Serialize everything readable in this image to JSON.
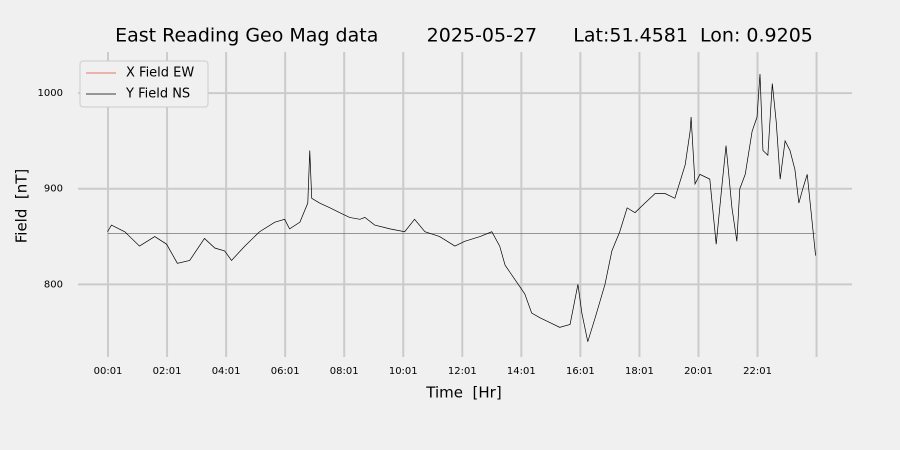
{
  "chart_data": {
    "type": "line",
    "title": "East Reading Geo Mag data        2025-05-27      Lat:51.4581  Lon: 0.9205",
    "xlabel": "Time  [Hr]",
    "ylabel": "Field  [nT]",
    "x": [
      0,
      8,
      35,
      65,
      96,
      120,
      142,
      167,
      197,
      218,
      238,
      252,
      279,
      309,
      340,
      360,
      370,
      391,
      407,
      411,
      415,
      431,
      452,
      472,
      492,
      513,
      523,
      543,
      574,
      604,
      624,
      645,
      675,
      706,
      726,
      757,
      781,
      797,
      808,
      828,
      848,
      862,
      879,
      899,
      919,
      940,
      956,
      964,
      976,
      991,
      1011,
      1025,
      1041,
      1056,
      1072,
      1092,
      1113,
      1133,
      1153,
      1174,
      1184,
      1186,
      1194,
      1204,
      1224,
      1237,
      1249,
      1257,
      1269,
      1279,
      1285,
      1296,
      1310,
      1320,
      1326,
      1332,
      1342,
      1351,
      1359,
      1367,
      1377,
      1387,
      1397,
      1405,
      1413,
      1422,
      1430,
      1439
    ],
    "series": [
      {
        "name": "X Field EW",
        "color": "#e24a33",
        "values": [
          853,
          853,
          853,
          853,
          853,
          853,
          853,
          853,
          853,
          853,
          853,
          853,
          853,
          853,
          853,
          853,
          853,
          853,
          853,
          853,
          853,
          853,
          853,
          853,
          853,
          853,
          853,
          853,
          853,
          853,
          853,
          853,
          853,
          853,
          853,
          853,
          853,
          853,
          853,
          853,
          853,
          853,
          853,
          853,
          853,
          853,
          853,
          853,
          853,
          853,
          853,
          853,
          853,
          853,
          853,
          853,
          853,
          853,
          853,
          853,
          853,
          853,
          853,
          853,
          853,
          853,
          853,
          853,
          853,
          853,
          853,
          853,
          853,
          853,
          853,
          853,
          853,
          853,
          853,
          853,
          853,
          853,
          853,
          853,
          853,
          853,
          853,
          853
        ]
      },
      {
        "name": "Y Field NS",
        "color": "#000000",
        "values": [
          855,
          862,
          855,
          840,
          850,
          842,
          822,
          825,
          848,
          838,
          835,
          825,
          840,
          855,
          865,
          868,
          858,
          865,
          885,
          940,
          890,
          885,
          880,
          875,
          870,
          868,
          870,
          862,
          858,
          855,
          868,
          855,
          850,
          840,
          845,
          850,
          855,
          840,
          820,
          805,
          790,
          770,
          765,
          760,
          755,
          758,
          800,
          770,
          740,
          765,
          800,
          835,
          855,
          880,
          875,
          885,
          895,
          895,
          890,
          925,
          960,
          975,
          905,
          915,
          910,
          842,
          905,
          945,
          880,
          845,
          900,
          915,
          960,
          975,
          1020,
          940,
          935,
          1010,
          970,
          910,
          950,
          940,
          920,
          885,
          900,
          915,
          875,
          830
        ]
      }
    ],
    "xlim": [
      -60,
      1513
    ],
    "ylim": [
      724,
      1043
    ],
    "xticks": [
      {
        "value": 1,
        "label": "00:01"
      },
      {
        "value": 121,
        "label": "02:01"
      },
      {
        "value": 241,
        "label": "04:01"
      },
      {
        "value": 361,
        "label": "06:01"
      },
      {
        "value": 481,
        "label": "08:01"
      },
      {
        "value": 601,
        "label": "10:01"
      },
      {
        "value": 721,
        "label": "12:01"
      },
      {
        "value": 841,
        "label": "14:01"
      },
      {
        "value": 961,
        "label": "16:01"
      },
      {
        "value": 1081,
        "label": "18:01"
      },
      {
        "value": 1201,
        "label": "20:01"
      },
      {
        "value": 1321,
        "label": "22:01"
      },
      {
        "value": 1441,
        "label": null
      }
    ],
    "yticks": [
      800,
      900,
      1000
    ],
    "grid": true,
    "legend": "upper left"
  }
}
